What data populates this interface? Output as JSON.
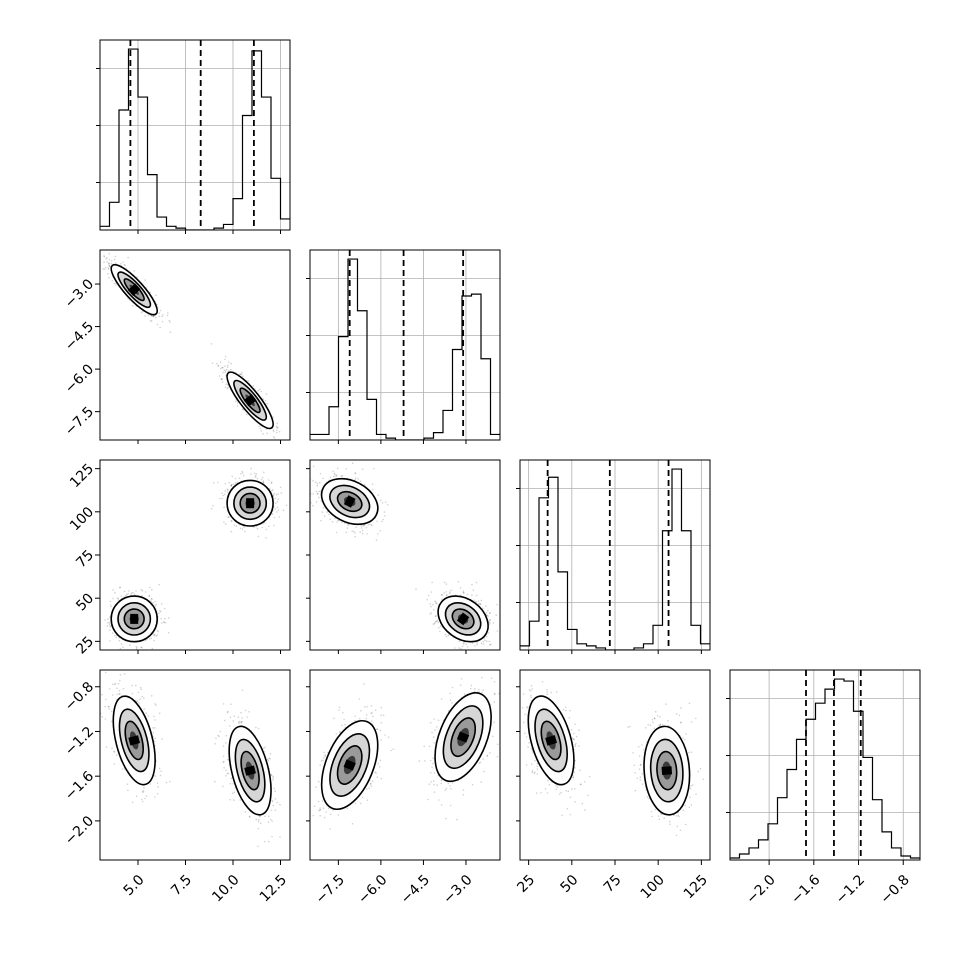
{
  "chart_data": {
    "type": "corner",
    "title": "",
    "parameters": [
      {
        "name": "",
        "range": [
          3.0,
          13.0
        ],
        "ticks": [
          5.0,
          7.5,
          10.0,
          12.5
        ],
        "tick_labels": [
          "5.0",
          "7.5",
          "10.0",
          "12.5"
        ]
      },
      {
        "name": "",
        "range": [
          -8.5,
          -1.8
        ],
        "ticks": [
          -7.5,
          -6.0,
          -4.5,
          -3.0
        ],
        "tick_labels": [
          "−7.5",
          "−6.0",
          "−4.5",
          "−3.0"
        ]
      },
      {
        "name": "",
        "range": [
          20,
          130
        ],
        "ticks": [
          25,
          50,
          75,
          100,
          125
        ],
        "tick_labels": [
          "25",
          "50",
          "75",
          "100",
          "125"
        ]
      },
      {
        "name": "",
        "range": [
          -2.35,
          -0.65
        ],
        "ticks": [
          -2.0,
          -1.6,
          -1.2,
          -0.8
        ],
        "tick_labels": [
          "−2.0",
          "−1.6",
          "−1.2",
          "−0.8"
        ]
      }
    ],
    "histograms": [
      {
        "param": 0,
        "bin_edges": [
          3.0,
          3.5,
          4.0,
          4.5,
          5.0,
          5.5,
          6.0,
          6.5,
          7.0,
          7.5,
          8.0,
          8.5,
          9.0,
          9.5,
          10.0,
          10.5,
          11.0,
          11.5,
          12.0,
          12.5,
          13.0
        ],
        "counts": [
          0.02,
          0.15,
          0.65,
          0.98,
          0.72,
          0.3,
          0.07,
          0.02,
          0.01,
          0,
          0,
          0,
          0.01,
          0.03,
          0.17,
          0.62,
          0.97,
          0.72,
          0.28,
          0.06
        ],
        "quantiles": [
          4.6,
          8.3,
          11.1
        ]
      },
      {
        "param": 1,
        "bin_edges": [
          -8.5,
          -8.165,
          -7.83,
          -7.495,
          -7.16,
          -6.825,
          -6.49,
          -6.155,
          -5.82,
          -5.485,
          -5.15,
          -4.815,
          -4.48,
          -4.145,
          -3.81,
          -3.475,
          -3.14,
          -2.805,
          -2.47,
          -2.135,
          -1.8
        ],
        "counts": [
          0.03,
          0.03,
          0.18,
          0.56,
          0.98,
          0.7,
          0.22,
          0.03,
          0.01,
          0,
          0,
          0,
          0.01,
          0.04,
          0.16,
          0.49,
          0.78,
          0.79,
          0.44,
          0.03
        ],
        "quantiles": [
          -7.1,
          -5.2,
          -3.1
        ]
      },
      {
        "param": 2,
        "bin_edges": [
          20,
          25.5,
          31,
          36.5,
          42,
          47.5,
          53,
          58.5,
          64,
          69.5,
          75,
          80.5,
          86,
          91.5,
          97,
          102.5,
          108,
          113.5,
          119,
          124.5,
          130
        ],
        "counts": [
          0.02,
          0.14,
          0.74,
          0.84,
          0.38,
          0.1,
          0.03,
          0.02,
          0.01,
          0,
          0,
          0,
          0.01,
          0.03,
          0.12,
          0.58,
          0.88,
          0.58,
          0.12,
          0.03
        ],
        "quantiles": [
          36,
          72,
          106
        ]
      },
      {
        "param": 3,
        "bin_edges": [
          -2.35,
          -2.265,
          -2.18,
          -2.095,
          -2.01,
          -1.925,
          -1.84,
          -1.755,
          -1.67,
          -1.585,
          -1.5,
          -1.415,
          -1.33,
          -1.245,
          -1.16,
          -1.075,
          -0.99,
          -0.905,
          -0.82,
          -0.735,
          -0.65
        ],
        "counts": [
          0.01,
          0.03,
          0.06,
          0.1,
          0.18,
          0.31,
          0.45,
          0.6,
          0.7,
          0.78,
          0.85,
          0.9,
          0.89,
          0.74,
          0.51,
          0.3,
          0.14,
          0.06,
          0.02,
          0.01
        ],
        "quantiles": [
          -1.67,
          -1.42,
          -1.18
        ]
      }
    ],
    "scatter_blobs": [
      {
        "x_param": 0,
        "y_param": 1,
        "clusters": [
          {
            "x": 4.8,
            "y": -3.2,
            "sx": 0.55,
            "sy": 0.4,
            "rho": -0.85
          },
          {
            "x": 10.9,
            "y": -7.1,
            "sx": 0.55,
            "sy": 0.45,
            "rho": -0.85
          }
        ]
      },
      {
        "x_param": 0,
        "y_param": 2,
        "clusters": [
          {
            "x": 4.8,
            "y": 38,
            "sx": 0.55,
            "sy": 6,
            "rho": 0.0
          },
          {
            "x": 10.9,
            "y": 105,
            "sx": 0.55,
            "sy": 6,
            "rho": 0.0
          }
        ]
      },
      {
        "x_param": 1,
        "y_param": 2,
        "clusters": [
          {
            "x": -7.1,
            "y": 106,
            "sx": 0.45,
            "sy": 6,
            "rho": -0.3
          },
          {
            "x": -3.1,
            "y": 38,
            "sx": 0.4,
            "sy": 6,
            "rho": -0.3
          }
        ]
      },
      {
        "x_param": 0,
        "y_param": 3,
        "clusters": [
          {
            "x": 4.8,
            "y": -1.28,
            "sx": 0.5,
            "sy": 0.18,
            "rho": -0.45
          },
          {
            "x": 10.9,
            "y": -1.55,
            "sx": 0.5,
            "sy": 0.18,
            "rho": -0.45
          }
        ]
      },
      {
        "x_param": 1,
        "y_param": 3,
        "clusters": [
          {
            "x": -7.1,
            "y": -1.5,
            "sx": 0.45,
            "sy": 0.18,
            "rho": 0.45
          },
          {
            "x": -3.1,
            "y": -1.25,
            "sx": 0.45,
            "sy": 0.18,
            "rho": 0.45
          }
        ]
      },
      {
        "x_param": 2,
        "y_param": 3,
        "clusters": [
          {
            "x": 38,
            "y": -1.28,
            "sx": 6,
            "sy": 0.18,
            "rho": -0.45
          },
          {
            "x": 105,
            "y": -1.55,
            "sx": 6,
            "sy": 0.18,
            "rho": -0.1
          }
        ]
      }
    ],
    "grid": true,
    "legend": "none"
  }
}
